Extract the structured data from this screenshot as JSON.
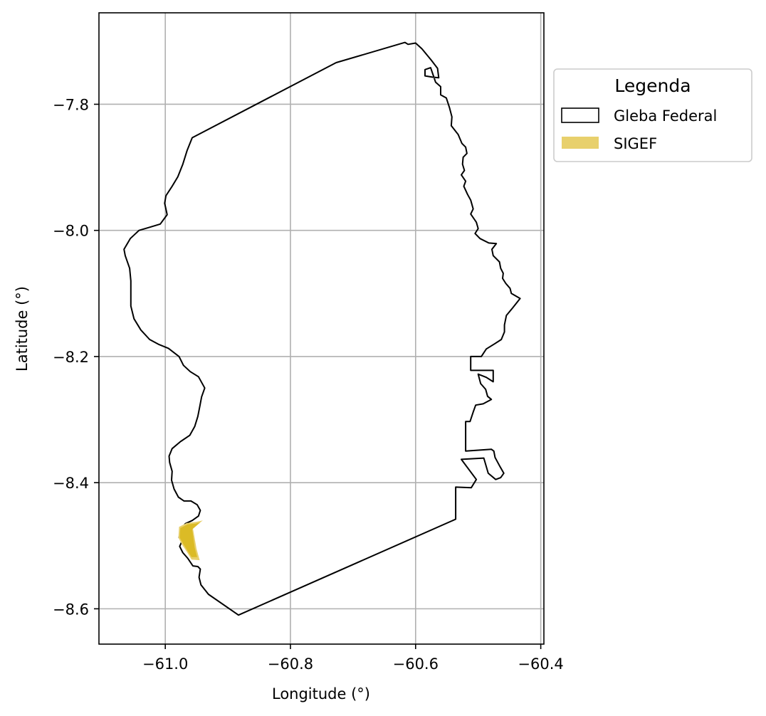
{
  "chart_data": {
    "type": "map",
    "xlabel": "Longitude (°)",
    "ylabel": "Latitude (°)",
    "xlim": [
      -61.106,
      -60.395
    ],
    "ylim": [
      -8.656,
      -7.655
    ],
    "xticks": [
      {
        "value": -61.0,
        "label": "−61.0"
      },
      {
        "value": -60.8,
        "label": "−60.8"
      },
      {
        "value": -60.6,
        "label": "−60.6"
      },
      {
        "value": -60.4,
        "label": "−60.4"
      }
    ],
    "yticks": [
      {
        "value": -7.8,
        "label": "−7.8"
      },
      {
        "value": -8.0,
        "label": "−8.0"
      },
      {
        "value": -8.2,
        "label": "−8.2"
      },
      {
        "value": -8.4,
        "label": "−8.4"
      },
      {
        "value": -8.6,
        "label": "−8.6"
      }
    ],
    "grid": true,
    "legend": {
      "title": "Legenda",
      "position": "outside-top-right",
      "entries": [
        {
          "label": "Gleba Federal",
          "style": "outline",
          "edge_color": "#000000",
          "face_color": "#ffffff"
        },
        {
          "label": "SIGEF",
          "style": "fill",
          "face_color": "#e8d06c"
        }
      ]
    },
    "layers": [
      {
        "name": "Gleba Federal",
        "style": "outline",
        "color": "#000000",
        "coordinates": [
          [
            -60.883,
            -8.61
          ],
          [
            -60.931,
            -8.577
          ],
          [
            -60.943,
            -8.562
          ],
          [
            -60.946,
            -8.55
          ],
          [
            -60.944,
            -8.537
          ],
          [
            -60.948,
            -8.533
          ],
          [
            -60.956,
            -8.532
          ],
          [
            -60.964,
            -8.52
          ],
          [
            -60.972,
            -8.511
          ],
          [
            -60.977,
            -8.501
          ],
          [
            -60.973,
            -8.492
          ],
          [
            -60.978,
            -8.487
          ],
          [
            -60.975,
            -8.474
          ],
          [
            -60.968,
            -8.465
          ],
          [
            -60.957,
            -8.46
          ],
          [
            -60.947,
            -8.453
          ],
          [
            -60.944,
            -8.444
          ],
          [
            -60.949,
            -8.435
          ],
          [
            -60.959,
            -8.429
          ],
          [
            -60.97,
            -8.429
          ],
          [
            -60.979,
            -8.423
          ],
          [
            -60.986,
            -8.41
          ],
          [
            -60.99,
            -8.396
          ],
          [
            -60.989,
            -8.382
          ],
          [
            -60.993,
            -8.368
          ],
          [
            -60.994,
            -8.358
          ],
          [
            -60.989,
            -8.346
          ],
          [
            -60.976,
            -8.335
          ],
          [
            -60.961,
            -8.325
          ],
          [
            -60.953,
            -8.311
          ],
          [
            -60.948,
            -8.295
          ],
          [
            -60.945,
            -8.28
          ],
          [
            -60.942,
            -8.264
          ],
          [
            -60.937,
            -8.25
          ],
          [
            -60.947,
            -8.232
          ],
          [
            -60.96,
            -8.224
          ],
          [
            -60.971,
            -8.214
          ],
          [
            -60.978,
            -8.2
          ],
          [
            -60.995,
            -8.187
          ],
          [
            -61.01,
            -8.181
          ],
          [
            -61.025,
            -8.173
          ],
          [
            -61.039,
            -8.158
          ],
          [
            -61.05,
            -8.14
          ],
          [
            -61.055,
            -8.12
          ],
          [
            -61.055,
            -8.1
          ],
          [
            -61.055,
            -8.08
          ],
          [
            -61.057,
            -8.06
          ],
          [
            -61.064,
            -8.04
          ],
          [
            -61.066,
            -8.03
          ],
          [
            -61.056,
            -8.013
          ],
          [
            -61.042,
            -8.0
          ],
          [
            -61.025,
            -7.995
          ],
          [
            -61.008,
            -7.99
          ],
          [
            -60.997,
            -7.975
          ],
          [
            -61.001,
            -7.957
          ],
          [
            -60.999,
            -7.945
          ],
          [
            -60.989,
            -7.93
          ],
          [
            -60.98,
            -7.915
          ],
          [
            -60.972,
            -7.895
          ],
          [
            -60.965,
            -7.873
          ],
          [
            -60.957,
            -7.853
          ],
          [
            -60.727,
            -7.734
          ],
          [
            -60.617,
            -7.702
          ],
          [
            -60.612,
            -7.705
          ],
          [
            -60.6,
            -7.703
          ],
          [
            -60.59,
            -7.712
          ],
          [
            -60.575,
            -7.73
          ],
          [
            -60.565,
            -7.743
          ],
          [
            -60.563,
            -7.758
          ],
          [
            -60.573,
            -7.757
          ],
          [
            -60.585,
            -7.755
          ],
          [
            -60.585,
            -7.745
          ],
          [
            -60.576,
            -7.742
          ],
          [
            -60.568,
            -7.765
          ],
          [
            -60.56,
            -7.772
          ],
          [
            -60.56,
            -7.785
          ],
          [
            -60.551,
            -7.79
          ],
          [
            -60.546,
            -7.805
          ],
          [
            -60.542,
            -7.82
          ],
          [
            -60.543,
            -7.834
          ],
          [
            -60.532,
            -7.848
          ],
          [
            -60.526,
            -7.862
          ],
          [
            -60.52,
            -7.868
          ],
          [
            -60.518,
            -7.878
          ],
          [
            -60.524,
            -7.884
          ],
          [
            -60.525,
            -7.895
          ],
          [
            -60.522,
            -7.905
          ],
          [
            -60.527,
            -7.912
          ],
          [
            -60.52,
            -7.922
          ],
          [
            -60.523,
            -7.93
          ],
          [
            -60.517,
            -7.943
          ],
          [
            -60.512,
            -7.952
          ],
          [
            -60.508,
            -7.966
          ],
          [
            -60.512,
            -7.974
          ],
          [
            -60.503,
            -7.987
          ],
          [
            -60.5,
            -7.997
          ],
          [
            -60.505,
            -8.005
          ],
          [
            -60.497,
            -8.013
          ],
          [
            -60.483,
            -8.02
          ],
          [
            -60.471,
            -8.021
          ],
          [
            -60.478,
            -8.03
          ],
          [
            -60.476,
            -8.04
          ],
          [
            -60.466,
            -8.05
          ],
          [
            -60.464,
            -8.06
          ],
          [
            -60.46,
            -8.068
          ],
          [
            -60.461,
            -8.076
          ],
          [
            -60.456,
            -8.084
          ],
          [
            -60.449,
            -8.092
          ],
          [
            -60.447,
            -8.1
          ],
          [
            -60.433,
            -8.108
          ],
          [
            -60.445,
            -8.123
          ],
          [
            -60.455,
            -8.135
          ],
          [
            -60.458,
            -8.15
          ],
          [
            -60.458,
            -8.161
          ],
          [
            -60.463,
            -8.173
          ],
          [
            -60.474,
            -8.18
          ],
          [
            -60.487,
            -8.188
          ],
          [
            -60.495,
            -8.2
          ],
          [
            -60.512,
            -8.2
          ],
          [
            -60.512,
            -8.222
          ],
          [
            -60.476,
            -8.222
          ],
          [
            -60.476,
            -8.24
          ],
          [
            -60.487,
            -8.233
          ],
          [
            -60.5,
            -8.228
          ],
          [
            -60.496,
            -8.243
          ],
          [
            -60.488,
            -8.252
          ],
          [
            -60.485,
            -8.263
          ],
          [
            -60.479,
            -8.268
          ],
          [
            -60.492,
            -8.275
          ],
          [
            -60.504,
            -8.277
          ],
          [
            -60.508,
            -8.288
          ],
          [
            -60.513,
            -8.303
          ],
          [
            -60.52,
            -8.303
          ],
          [
            -60.52,
            -8.35
          ],
          [
            -60.479,
            -8.347
          ],
          [
            -60.475,
            -8.35
          ],
          [
            -60.473,
            -8.36
          ],
          [
            -60.466,
            -8.373
          ],
          [
            -60.459,
            -8.385
          ],
          [
            -60.464,
            -8.392
          ],
          [
            -60.472,
            -8.395
          ],
          [
            -60.484,
            -8.385
          ],
          [
            -60.491,
            -8.361
          ],
          [
            -60.527,
            -8.363
          ],
          [
            -60.503,
            -8.395
          ],
          [
            -60.511,
            -8.408
          ],
          [
            -60.536,
            -8.407
          ],
          [
            -60.536,
            -8.458
          ],
          [
            -60.883,
            -8.61
          ]
        ]
      },
      {
        "name": "SIGEF",
        "style": "fill",
        "color": "#e8d06c",
        "coordinates": [
          [
            -60.978,
            -8.47
          ],
          [
            -60.966,
            -8.464
          ],
          [
            -60.95,
            -8.462
          ],
          [
            -60.94,
            -8.46
          ],
          [
            -60.956,
            -8.472
          ],
          [
            -60.95,
            -8.505
          ],
          [
            -60.945,
            -8.523
          ],
          [
            -60.958,
            -8.522
          ],
          [
            -60.966,
            -8.509
          ],
          [
            -60.974,
            -8.497
          ],
          [
            -60.979,
            -8.487
          ]
        ]
      },
      {
        "name": "SIGEF",
        "style": "fill",
        "color": "#dbbb26",
        "coordinates": [
          [
            -60.976,
            -8.472
          ],
          [
            -60.964,
            -8.466
          ],
          [
            -60.952,
            -8.465
          ],
          [
            -60.944,
            -8.463
          ],
          [
            -60.957,
            -8.474
          ],
          [
            -60.953,
            -8.503
          ],
          [
            -60.949,
            -8.518
          ],
          [
            -60.958,
            -8.518
          ],
          [
            -60.965,
            -8.507
          ],
          [
            -60.972,
            -8.496
          ],
          [
            -60.977,
            -8.487
          ]
        ]
      }
    ]
  }
}
